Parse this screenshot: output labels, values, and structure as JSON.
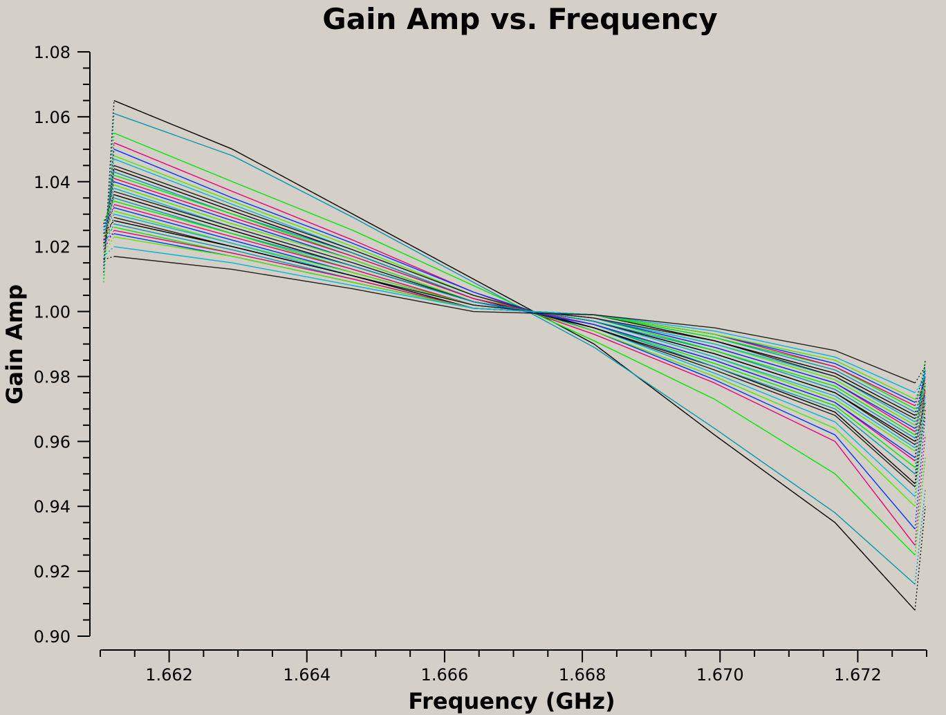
{
  "chart_data": {
    "type": "line",
    "title": "Gain Amp vs. Frequency",
    "xlabel": "Frequency (GHz)",
    "ylabel": "Gain Amp",
    "xlim": [
      1.661,
      1.673
    ],
    "ylim": [
      0.9,
      1.08
    ],
    "x_ticks": [
      "1.662",
      "1.664",
      "1.666",
      "1.668",
      "1.670",
      "1.672"
    ],
    "y_ticks": [
      "0.90",
      "0.92",
      "0.94",
      "0.96",
      "0.98",
      "1.00",
      "1.02",
      "1.04",
      "1.06",
      "1.08"
    ],
    "grid": false,
    "legend": "none",
    "palette": [
      "#000000",
      "#0096b4",
      "#00e600",
      "#e6007a",
      "#0032ff",
      "#50e600",
      "#00b4dc",
      "#202020"
    ],
    "x": [
      1.66105,
      1.6612,
      1.66292,
      1.66467,
      1.66642,
      1.66817,
      1.66992,
      1.67167,
      1.67283,
      1.67298
    ],
    "series": [
      {
        "values": [
          1.012,
          1.065,
          1.05,
          1.03,
          1.01,
          0.99,
          0.962,
          0.935,
          0.908,
          0.94
        ]
      },
      {
        "values": [
          1.01,
          1.061,
          1.048,
          1.029,
          1.009,
          0.989,
          0.964,
          0.938,
          0.916,
          0.945
        ]
      },
      {
        "values": [
          1.009,
          1.055,
          1.04,
          1.025,
          1.008,
          0.991,
          0.973,
          0.95,
          0.925,
          0.955
        ]
      },
      {
        "values": [
          1.015,
          1.052,
          1.037,
          1.022,
          1.006,
          0.993,
          0.978,
          0.96,
          0.928,
          0.962
        ]
      },
      {
        "values": [
          1.014,
          1.05,
          1.035,
          1.021,
          1.006,
          0.994,
          0.979,
          0.962,
          0.933,
          0.968
        ]
      },
      {
        "values": [
          1.018,
          1.048,
          1.034,
          1.02,
          1.005,
          0.994,
          0.98,
          0.964,
          0.94,
          0.972
        ]
      },
      {
        "values": [
          1.02,
          1.047,
          1.033,
          1.019,
          1.005,
          0.995,
          0.981,
          0.966,
          0.943,
          0.975
        ]
      },
      {
        "values": [
          1.016,
          1.045,
          1.032,
          1.019,
          1.005,
          0.995,
          0.982,
          0.968,
          0.946,
          0.97
        ]
      },
      {
        "values": [
          1.022,
          1.044,
          1.031,
          1.018,
          1.004,
          0.995,
          0.983,
          0.969,
          0.947,
          0.978
        ]
      },
      {
        "values": [
          1.019,
          1.043,
          1.03,
          1.018,
          1.004,
          0.996,
          0.983,
          0.97,
          0.95,
          0.974
        ]
      },
      {
        "values": [
          1.024,
          1.042,
          1.03,
          1.017,
          1.004,
          0.996,
          0.984,
          0.971,
          0.952,
          0.98
        ]
      },
      {
        "values": [
          1.021,
          1.041,
          1.029,
          1.017,
          1.004,
          0.996,
          0.985,
          0.972,
          0.954,
          0.976
        ]
      },
      {
        "values": [
          1.025,
          1.04,
          1.028,
          1.016,
          1.003,
          0.996,
          0.985,
          0.972,
          0.955,
          0.982
        ]
      },
      {
        "values": [
          1.023,
          1.039,
          1.027,
          1.016,
          1.003,
          0.997,
          0.986,
          0.973,
          0.957,
          0.978
        ]
      },
      {
        "values": [
          1.026,
          1.038,
          1.026,
          1.015,
          1.003,
          0.997,
          0.986,
          0.974,
          0.958,
          0.984
        ]
      },
      {
        "values": [
          1.02,
          1.037,
          1.026,
          1.015,
          1.003,
          0.997,
          0.987,
          0.975,
          0.959,
          0.972
        ]
      },
      {
        "values": [
          1.027,
          1.036,
          1.025,
          1.014,
          1.003,
          0.997,
          0.987,
          0.975,
          0.96,
          0.985
        ]
      },
      {
        "values": [
          1.024,
          1.035,
          1.024,
          1.014,
          1.003,
          0.997,
          0.988,
          0.976,
          0.961,
          0.98
        ]
      },
      {
        "values": [
          1.028,
          1.034,
          1.024,
          1.013,
          1.002,
          0.998,
          0.988,
          0.977,
          0.962,
          0.983
        ]
      },
      {
        "values": [
          1.022,
          1.033,
          1.023,
          1.013,
          1.002,
          0.998,
          0.989,
          0.978,
          0.963,
          0.976
        ]
      },
      {
        "values": [
          1.026,
          1.032,
          1.022,
          1.012,
          1.002,
          0.998,
          0.989,
          0.978,
          0.964,
          0.981
        ]
      },
      {
        "values": [
          1.023,
          1.031,
          1.021,
          1.012,
          1.002,
          0.998,
          0.99,
          0.979,
          0.965,
          0.978
        ]
      },
      {
        "values": [
          1.025,
          1.03,
          1.021,
          1.011,
          1.002,
          0.998,
          0.99,
          0.98,
          0.966,
          0.982
        ]
      },
      {
        "values": [
          1.021,
          1.029,
          1.02,
          1.011,
          1.002,
          0.998,
          0.991,
          0.98,
          0.967,
          0.975
        ]
      },
      {
        "values": [
          1.024,
          1.028,
          1.02,
          1.011,
          1.001,
          0.999,
          0.991,
          0.981,
          0.968,
          0.98
        ]
      },
      {
        "values": [
          1.02,
          1.027,
          1.019,
          1.01,
          1.001,
          0.999,
          0.992,
          0.982,
          0.969,
          0.977
        ]
      },
      {
        "values": [
          1.023,
          1.026,
          1.018,
          1.01,
          1.001,
          0.999,
          0.992,
          0.983,
          0.97,
          0.984
        ]
      },
      {
        "values": [
          1.019,
          1.025,
          1.018,
          1.01,
          1.001,
          0.999,
          0.993,
          0.983,
          0.971,
          0.979
        ]
      },
      {
        "values": [
          1.022,
          1.024,
          1.017,
          1.009,
          1.001,
          0.999,
          0.993,
          0.984,
          0.972,
          0.982
        ]
      },
      {
        "values": [
          1.018,
          1.023,
          1.017,
          1.009,
          1.001,
          0.999,
          0.993,
          0.985,
          0.973,
          0.977
        ]
      },
      {
        "values": [
          1.017,
          1.02,
          1.015,
          1.008,
          1.001,
          0.999,
          0.994,
          0.986,
          0.975,
          0.98
        ]
      },
      {
        "values": [
          1.016,
          1.017,
          1.013,
          1.007,
          1.0,
          0.999,
          0.995,
          0.988,
          0.978,
          0.983
        ]
      }
    ]
  }
}
